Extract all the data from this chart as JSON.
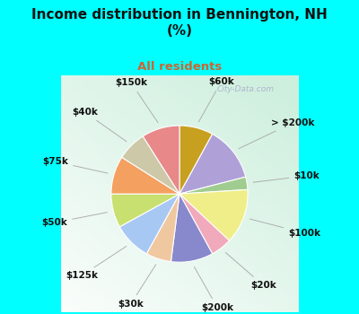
{
  "title": "Income distribution in Bennington, NH\n(%)",
  "subtitle": "All residents",
  "title_color": "#111111",
  "subtitle_color": "#cc6633",
  "bg_top": "#00ffff",
  "labels": [
    "$60k",
    "> $200k",
    "$10k",
    "$100k",
    "$20k",
    "$200k",
    "$30k",
    "$125k",
    "$50k",
    "$75k",
    "$40k",
    "$150k"
  ],
  "values": [
    8,
    13,
    3,
    13,
    5,
    10,
    6,
    9,
    8,
    9,
    7,
    9
  ],
  "colors": [
    "#c8a020",
    "#b0a0d8",
    "#a0cc90",
    "#f0ee88",
    "#f0aabb",
    "#8888cc",
    "#f0c8a0",
    "#a8c8f4",
    "#c8e070",
    "#f4a060",
    "#ccc8a8",
    "#e88888"
  ],
  "startangle": 90,
  "label_fontsize": 7.5,
  "watermark": "City-Data.com"
}
